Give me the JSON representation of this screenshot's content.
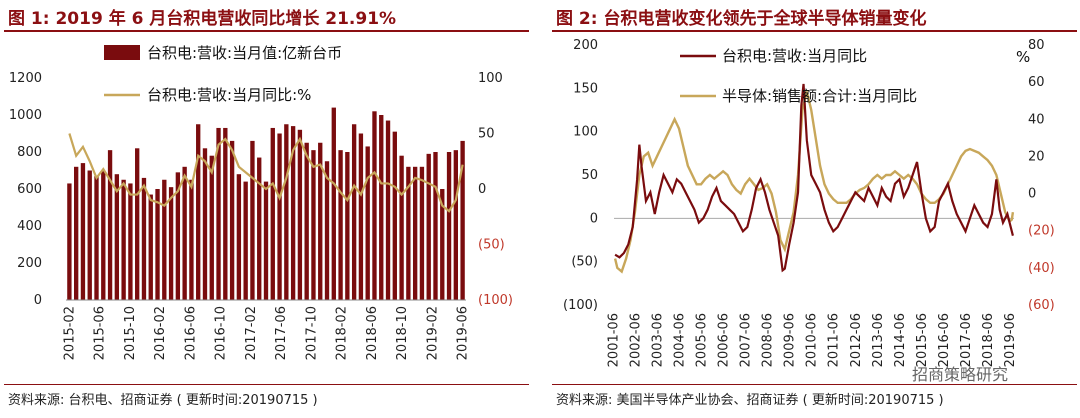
{
  "left": {
    "title": "图 1:  2019 年 6 月台积电营收同比增长 21.91%",
    "source": "资料来源:  台积电、招商证券 ( 更新时间:20190715 )"
  },
  "right": {
    "title": "图 2:  台积电营收变化领先于全球半导体销量变化",
    "source": "资料来源:  美国半导体产业协会、招商证券 ( 更新时间:20190715 )",
    "watermark": "招商策略研究"
  },
  "colors": {
    "brand": "#8b0f12",
    "bar": "#7a0c0e",
    "line": "#c8a75a",
    "negative": "#c0392b"
  },
  "chart_data": [
    {
      "type": "bar",
      "series": [
        {
          "name": "台积电:营收:当月值:亿新台币",
          "type": "bar",
          "axis": "left",
          "values": [
            630,
            720,
            740,
            700,
            670,
            700,
            810,
            680,
            650,
            630,
            820,
            660,
            570,
            600,
            650,
            610,
            690,
            720,
            650,
            950,
            820,
            780,
            930,
            930,
            860,
            680,
            640,
            860,
            770,
            640,
            930,
            900,
            950,
            940,
            920,
            850,
            810,
            850,
            750,
            1040,
            810,
            800,
            950,
            900,
            830,
            1020,
            1000,
            970,
            910,
            780,
            720,
            720,
            720,
            790,
            800,
            600,
            800,
            810,
            860
          ]
        },
        {
          "name": "台积电:营收:当月同比:%",
          "type": "line",
          "axis": "right",
          "values": [
            50,
            30,
            38,
            25,
            10,
            18,
            8,
            -2,
            5,
            -5,
            -5,
            3,
            -10,
            -12,
            -15,
            -8,
            -2,
            12,
            2,
            30,
            25,
            15,
            40,
            45,
            35,
            20,
            15,
            10,
            5,
            0,
            5,
            -8,
            10,
            35,
            45,
            30,
            20,
            22,
            10,
            5,
            -3,
            -10,
            3,
            -5,
            10,
            15,
            5,
            5,
            2,
            -5,
            2,
            10,
            8,
            5,
            2,
            -15,
            -20,
            -10,
            21.91
          ]
        }
      ],
      "x_ticks": [
        "2015-02",
        "2015-06",
        "2015-10",
        "2016-02",
        "2016-06",
        "2016-10",
        "2017-02",
        "2017-06",
        "2017-10",
        "2018-02",
        "2018-06",
        "2018-10",
        "2019-02",
        "2019-06"
      ],
      "y_left": {
        "ticks": [
          "0",
          "200",
          "400",
          "600",
          "800",
          "1000",
          "1200"
        ],
        "range": [
          0,
          1200
        ]
      },
      "y_right": {
        "ticks": [
          "(100)",
          "(50)",
          "0",
          "50",
          "100"
        ],
        "range": [
          -100,
          100
        ]
      }
    },
    {
      "type": "line",
      "series": [
        {
          "name": "台积电:营收:当月同比",
          "axis": "left",
          "points": [
            [
              2001.5,
              -42
            ],
            [
              2001.7,
              -45
            ],
            [
              2001.9,
              -40
            ],
            [
              2002.1,
              -30
            ],
            [
              2002.3,
              -10
            ],
            [
              2002.5,
              45
            ],
            [
              2002.6,
              85
            ],
            [
              2002.7,
              60
            ],
            [
              2002.9,
              20
            ],
            [
              2003.1,
              30
            ],
            [
              2003.3,
              5
            ],
            [
              2003.5,
              30
            ],
            [
              2003.7,
              50
            ],
            [
              2003.9,
              40
            ],
            [
              2004.1,
              30
            ],
            [
              2004.3,
              45
            ],
            [
              2004.5,
              40
            ],
            [
              2004.7,
              30
            ],
            [
              2004.9,
              20
            ],
            [
              2005.1,
              10
            ],
            [
              2005.3,
              -5
            ],
            [
              2005.5,
              0
            ],
            [
              2005.7,
              10
            ],
            [
              2005.9,
              25
            ],
            [
              2006.1,
              35
            ],
            [
              2006.3,
              20
            ],
            [
              2006.5,
              15
            ],
            [
              2006.7,
              10
            ],
            [
              2006.9,
              5
            ],
            [
              2007.1,
              -5
            ],
            [
              2007.3,
              -15
            ],
            [
              2007.5,
              -10
            ],
            [
              2007.7,
              10
            ],
            [
              2007.9,
              35
            ],
            [
              2008.1,
              45
            ],
            [
              2008.3,
              30
            ],
            [
              2008.5,
              10
            ],
            [
              2008.7,
              -5
            ],
            [
              2008.9,
              -20
            ],
            [
              2009.1,
              -60
            ],
            [
              2009.2,
              -58
            ],
            [
              2009.4,
              -30
            ],
            [
              2009.6,
              -5
            ],
            [
              2009.8,
              30
            ],
            [
              2009.95,
              130
            ],
            [
              2010.05,
              155
            ],
            [
              2010.2,
              90
            ],
            [
              2010.4,
              50
            ],
            [
              2010.6,
              40
            ],
            [
              2010.8,
              30
            ],
            [
              2011.0,
              10
            ],
            [
              2011.2,
              -5
            ],
            [
              2011.4,
              -15
            ],
            [
              2011.6,
              -10
            ],
            [
              2011.8,
              0
            ],
            [
              2012.0,
              10
            ],
            [
              2012.2,
              20
            ],
            [
              2012.4,
              30
            ],
            [
              2012.6,
              25
            ],
            [
              2012.8,
              20
            ],
            [
              2013.0,
              35
            ],
            [
              2013.2,
              25
            ],
            [
              2013.4,
              15
            ],
            [
              2013.6,
              35
            ],
            [
              2013.8,
              25
            ],
            [
              2014.0,
              20
            ],
            [
              2014.2,
              40
            ],
            [
              2014.4,
              45
            ],
            [
              2014.6,
              25
            ],
            [
              2014.8,
              35
            ],
            [
              2015.0,
              50
            ],
            [
              2015.2,
              65
            ],
            [
              2015.4,
              30
            ],
            [
              2015.6,
              0
            ],
            [
              2015.8,
              -15
            ],
            [
              2016.0,
              -10
            ],
            [
              2016.2,
              20
            ],
            [
              2016.4,
              30
            ],
            [
              2016.6,
              40
            ],
            [
              2016.8,
              20
            ],
            [
              2017.0,
              5
            ],
            [
              2017.2,
              -5
            ],
            [
              2017.4,
              -15
            ],
            [
              2017.6,
              0
            ],
            [
              2017.8,
              15
            ],
            [
              2018.0,
              5
            ],
            [
              2018.2,
              -5
            ],
            [
              2018.4,
              -10
            ],
            [
              2018.6,
              5
            ],
            [
              2018.8,
              45
            ],
            [
              2018.95,
              10
            ],
            [
              2019.1,
              -5
            ],
            [
              2019.3,
              5
            ],
            [
              2019.5,
              -15
            ],
            [
              2019.55,
              -20
            ]
          ]
        },
        {
          "name": "半导体:销售额:合计:当月同比",
          "axis": "right",
          "points": [
            [
              2001.5,
              -35
            ],
            [
              2001.6,
              -40
            ],
            [
              2001.8,
              -42
            ],
            [
              2002.0,
              -35
            ],
            [
              2002.2,
              -25
            ],
            [
              2002.4,
              -10
            ],
            [
              2002.6,
              10
            ],
            [
              2002.8,
              20
            ],
            [
              2003.0,
              22
            ],
            [
              2003.2,
              15
            ],
            [
              2003.4,
              20
            ],
            [
              2003.6,
              25
            ],
            [
              2003.8,
              30
            ],
            [
              2004.0,
              35
            ],
            [
              2004.2,
              40
            ],
            [
              2004.4,
              35
            ],
            [
              2004.6,
              25
            ],
            [
              2004.8,
              15
            ],
            [
              2005.0,
              10
            ],
            [
              2005.2,
              5
            ],
            [
              2005.4,
              5
            ],
            [
              2005.6,
              8
            ],
            [
              2005.8,
              10
            ],
            [
              2006.0,
              8
            ],
            [
              2006.2,
              10
            ],
            [
              2006.4,
              12
            ],
            [
              2006.6,
              10
            ],
            [
              2006.8,
              5
            ],
            [
              2007.0,
              2
            ],
            [
              2007.2,
              0
            ],
            [
              2007.4,
              5
            ],
            [
              2007.6,
              8
            ],
            [
              2007.8,
              5
            ],
            [
              2008.0,
              2
            ],
            [
              2008.2,
              3
            ],
            [
              2008.4,
              5
            ],
            [
              2008.6,
              0
            ],
            [
              2008.8,
              -10
            ],
            [
              2009.0,
              -25
            ],
            [
              2009.2,
              -30
            ],
            [
              2009.4,
              -20
            ],
            [
              2009.6,
              -10
            ],
            [
              2009.8,
              10
            ],
            [
              2010.0,
              45
            ],
            [
              2010.2,
              55
            ],
            [
              2010.4,
              45
            ],
            [
              2010.6,
              30
            ],
            [
              2010.8,
              15
            ],
            [
              2011.0,
              5
            ],
            [
              2011.2,
              0
            ],
            [
              2011.4,
              -3
            ],
            [
              2011.6,
              -5
            ],
            [
              2011.8,
              -5
            ],
            [
              2012.0,
              -5
            ],
            [
              2012.2,
              -3
            ],
            [
              2012.4,
              0
            ],
            [
              2012.6,
              2
            ],
            [
              2012.8,
              3
            ],
            [
              2013.0,
              5
            ],
            [
              2013.2,
              8
            ],
            [
              2013.4,
              10
            ],
            [
              2013.6,
              8
            ],
            [
              2013.8,
              10
            ],
            [
              2014.0,
              10
            ],
            [
              2014.2,
              12
            ],
            [
              2014.4,
              10
            ],
            [
              2014.6,
              8
            ],
            [
              2014.8,
              10
            ],
            [
              2015.0,
              8
            ],
            [
              2015.2,
              5
            ],
            [
              2015.4,
              0
            ],
            [
              2015.6,
              -3
            ],
            [
              2015.8,
              -5
            ],
            [
              2016.0,
              -5
            ],
            [
              2016.2,
              -3
            ],
            [
              2016.4,
              0
            ],
            [
              2016.6,
              5
            ],
            [
              2016.8,
              10
            ],
            [
              2017.0,
              15
            ],
            [
              2017.2,
              20
            ],
            [
              2017.4,
              23
            ],
            [
              2017.6,
              24
            ],
            [
              2017.8,
              23
            ],
            [
              2018.0,
              22
            ],
            [
              2018.2,
              20
            ],
            [
              2018.4,
              18
            ],
            [
              2018.6,
              15
            ],
            [
              2018.8,
              10
            ],
            [
              2019.0,
              0
            ],
            [
              2019.2,
              -10
            ],
            [
              2019.4,
              -15
            ],
            [
              2019.5,
              -14
            ],
            [
              2019.55,
              -10
            ]
          ]
        }
      ],
      "x_ticks": [
        "2001-06",
        "2002-06",
        "2003-06",
        "2004-06",
        "2005-06",
        "2006-06",
        "2007-06",
        "2008-06",
        "2009-06",
        "2010-06",
        "2011-06",
        "2012-06",
        "2013-06",
        "2014-06",
        "2015-06",
        "2016-06",
        "2017-06",
        "2018-06",
        "2019-06"
      ],
      "y_left": {
        "ticks": [
          "(100)",
          "(50)",
          "0",
          "50",
          "100",
          "150",
          "200"
        ],
        "range": [
          -100,
          200
        ]
      },
      "y_right": {
        "ticks": [
          "(60)",
          "(40)",
          "(20)",
          "0",
          "20",
          "40",
          "60",
          "80"
        ],
        "range": [
          -60,
          80
        ],
        "unit": "%"
      }
    }
  ]
}
